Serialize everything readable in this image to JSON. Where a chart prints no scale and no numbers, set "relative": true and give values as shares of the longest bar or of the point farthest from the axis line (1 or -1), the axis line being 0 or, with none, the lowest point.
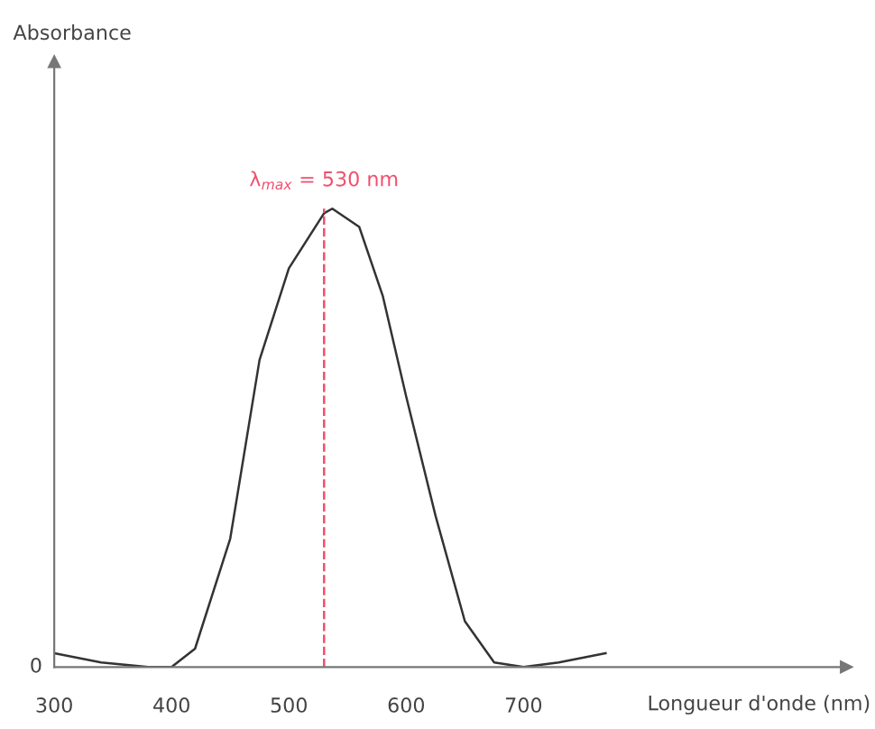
{
  "chart_data": {
    "type": "line",
    "relative": true,
    "xlabel": "Longueur d'onde (nm)",
    "x": [
      300,
      340,
      380,
      400,
      420,
      450,
      475,
      500,
      530,
      537,
      560,
      580,
      600,
      625,
      650,
      675,
      700,
      730,
      770
    ],
    "series": [
      {
        "color": "#333333",
        "values": [
          0.03,
          0.01,
          0,
          0,
          0.04,
          0.28,
          0.67,
          0.87,
          0.99,
          1,
          0.96,
          0.81,
          0.59,
          0.33,
          0.1,
          0.01,
          0,
          0.01,
          0.03
        ]
      }
    ],
    "xlim": [
      300,
      975
    ],
    "xticks": [
      300,
      400,
      500,
      600,
      700
    ],
    "ref_lines": [
      {
        "axis": "x",
        "value": 530,
        "label": "λ$_{max}$ = 530 nm",
        "color": "#f0506e",
        "line_style": "dashed"
      }
    ],
    "annotations": [
      "0",
      "Absorbance"
    ],
    "grid": false,
    "legend": false,
    "marker": "none",
    "line_style": "solid"
  }
}
